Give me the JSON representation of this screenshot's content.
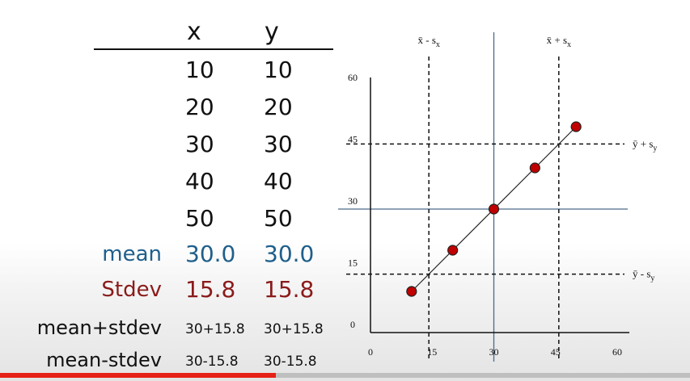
{
  "table": {
    "headers": [
      "x",
      "y"
    ],
    "rows": [
      [
        "10",
        "10"
      ],
      [
        "20",
        "20"
      ],
      [
        "30",
        "30"
      ],
      [
        "40",
        "40"
      ],
      [
        "50",
        "50"
      ]
    ],
    "mean": {
      "label": "mean",
      "x": "30.0",
      "y": "30.0"
    },
    "stdev": {
      "label": "Stdev",
      "x": "15.8",
      "y": "15.8"
    },
    "mean_plus": {
      "label": "mean+stdev",
      "x": "30+15.8",
      "y": "30+15.8"
    },
    "mean_minus": {
      "label": "mean-stdev",
      "x": "30-15.8",
      "y": "30-15.8"
    },
    "colors": {
      "mean": "#1f5f8b",
      "stdev": "#8b1a1a"
    }
  },
  "chart_data": {
    "type": "scatter",
    "x": [
      10,
      20,
      30,
      40,
      50
    ],
    "y": [
      10,
      20,
      30,
      40,
      50
    ],
    "xlim": [
      0,
      60
    ],
    "ylim": [
      0,
      60
    ],
    "xticks": [
      0,
      15,
      30,
      45,
      60
    ],
    "yticks": [
      0,
      15,
      30,
      45,
      60
    ],
    "mean_x": 30,
    "mean_y": 30,
    "vlines": [
      14.2,
      45.8
    ],
    "hlines": [
      14.2,
      45.8
    ],
    "annotations": {
      "x_minus": "x̄ - s",
      "x_minus_sub": "x",
      "x_plus": "x̄ + s",
      "x_plus_sub": "x",
      "y_plus": "ȳ + s",
      "y_plus_sub": "y",
      "y_minus": "ȳ - s",
      "y_minus_sub": "y"
    },
    "grid": false,
    "marker_color": "#c00000",
    "mean_line_color": "#4a6a8a"
  },
  "progress": 0.4
}
